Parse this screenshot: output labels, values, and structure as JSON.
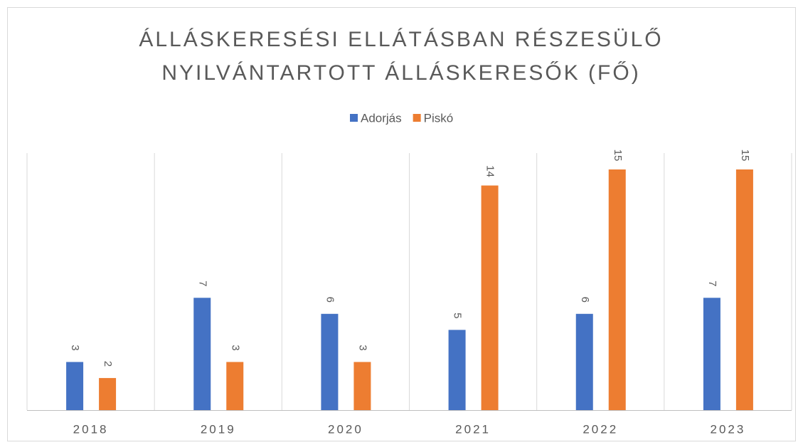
{
  "chart_data": {
    "type": "bar",
    "title": "ÁLLÁSKERESÉSI ELLÁTÁSBAN RÉSZESÜLŐ NYILVÁNTARTOTT ÁLLÁSKERESŐK (FŐ)",
    "categories": [
      "2018",
      "2019",
      "2020",
      "2021",
      "2022",
      "2023"
    ],
    "series": [
      {
        "name": "Adorjás",
        "color": "#4472c4",
        "values": [
          3,
          7,
          6,
          5,
          6,
          7
        ]
      },
      {
        "name": "Piskó",
        "color": "#ed7d31",
        "values": [
          2,
          3,
          3,
          14,
          15,
          15
        ]
      }
    ],
    "grid": true,
    "legend": "top"
  }
}
